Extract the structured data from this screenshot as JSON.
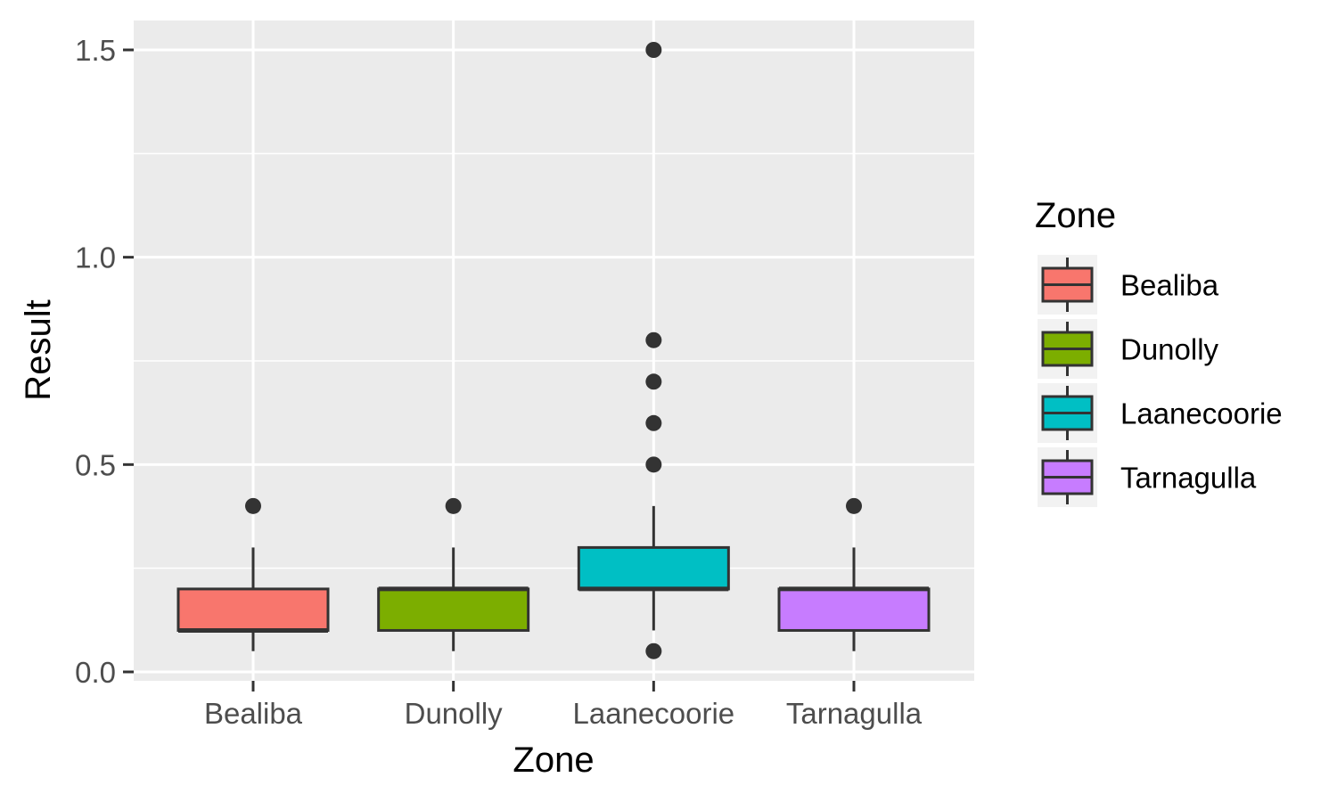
{
  "chart_data": {
    "type": "boxplot",
    "xlabel": "Zone",
    "ylabel": "Result",
    "ylim": [
      -0.02,
      1.57
    ],
    "yticks": [
      0.0,
      0.5,
      1.0,
      1.5
    ],
    "ytick_labels": [
      "0.0",
      "0.5",
      "1.0",
      "1.5"
    ],
    "grid": true,
    "legend": {
      "title": "Zone",
      "position": "right"
    },
    "categories": [
      "Bealiba",
      "Dunolly",
      "Laanecoorie",
      "Tarnagulla"
    ],
    "series": [
      {
        "name": "Bealiba",
        "color": "#F8766D",
        "whisker_low": 0.05,
        "q1": 0.1,
        "median": 0.1,
        "q3": 0.2,
        "whisker_high": 0.3,
        "outliers": [
          0.4
        ]
      },
      {
        "name": "Dunolly",
        "color": "#7CAE00",
        "whisker_low": 0.05,
        "q1": 0.1,
        "median": 0.2,
        "q3": 0.2,
        "whisker_high": 0.3,
        "outliers": [
          0.4
        ]
      },
      {
        "name": "Laanecoorie",
        "color": "#00BFC4",
        "whisker_low": 0.1,
        "q1": 0.2,
        "median": 0.2,
        "q3": 0.3,
        "whisker_high": 0.4,
        "outliers": [
          0.05,
          0.5,
          0.6,
          0.7,
          0.8,
          1.5
        ]
      },
      {
        "name": "Tarnagulla",
        "color": "#C77CFF",
        "whisker_low": 0.05,
        "q1": 0.1,
        "median": 0.2,
        "q3": 0.2,
        "whisker_high": 0.3,
        "outliers": [
          0.4
        ]
      }
    ]
  }
}
